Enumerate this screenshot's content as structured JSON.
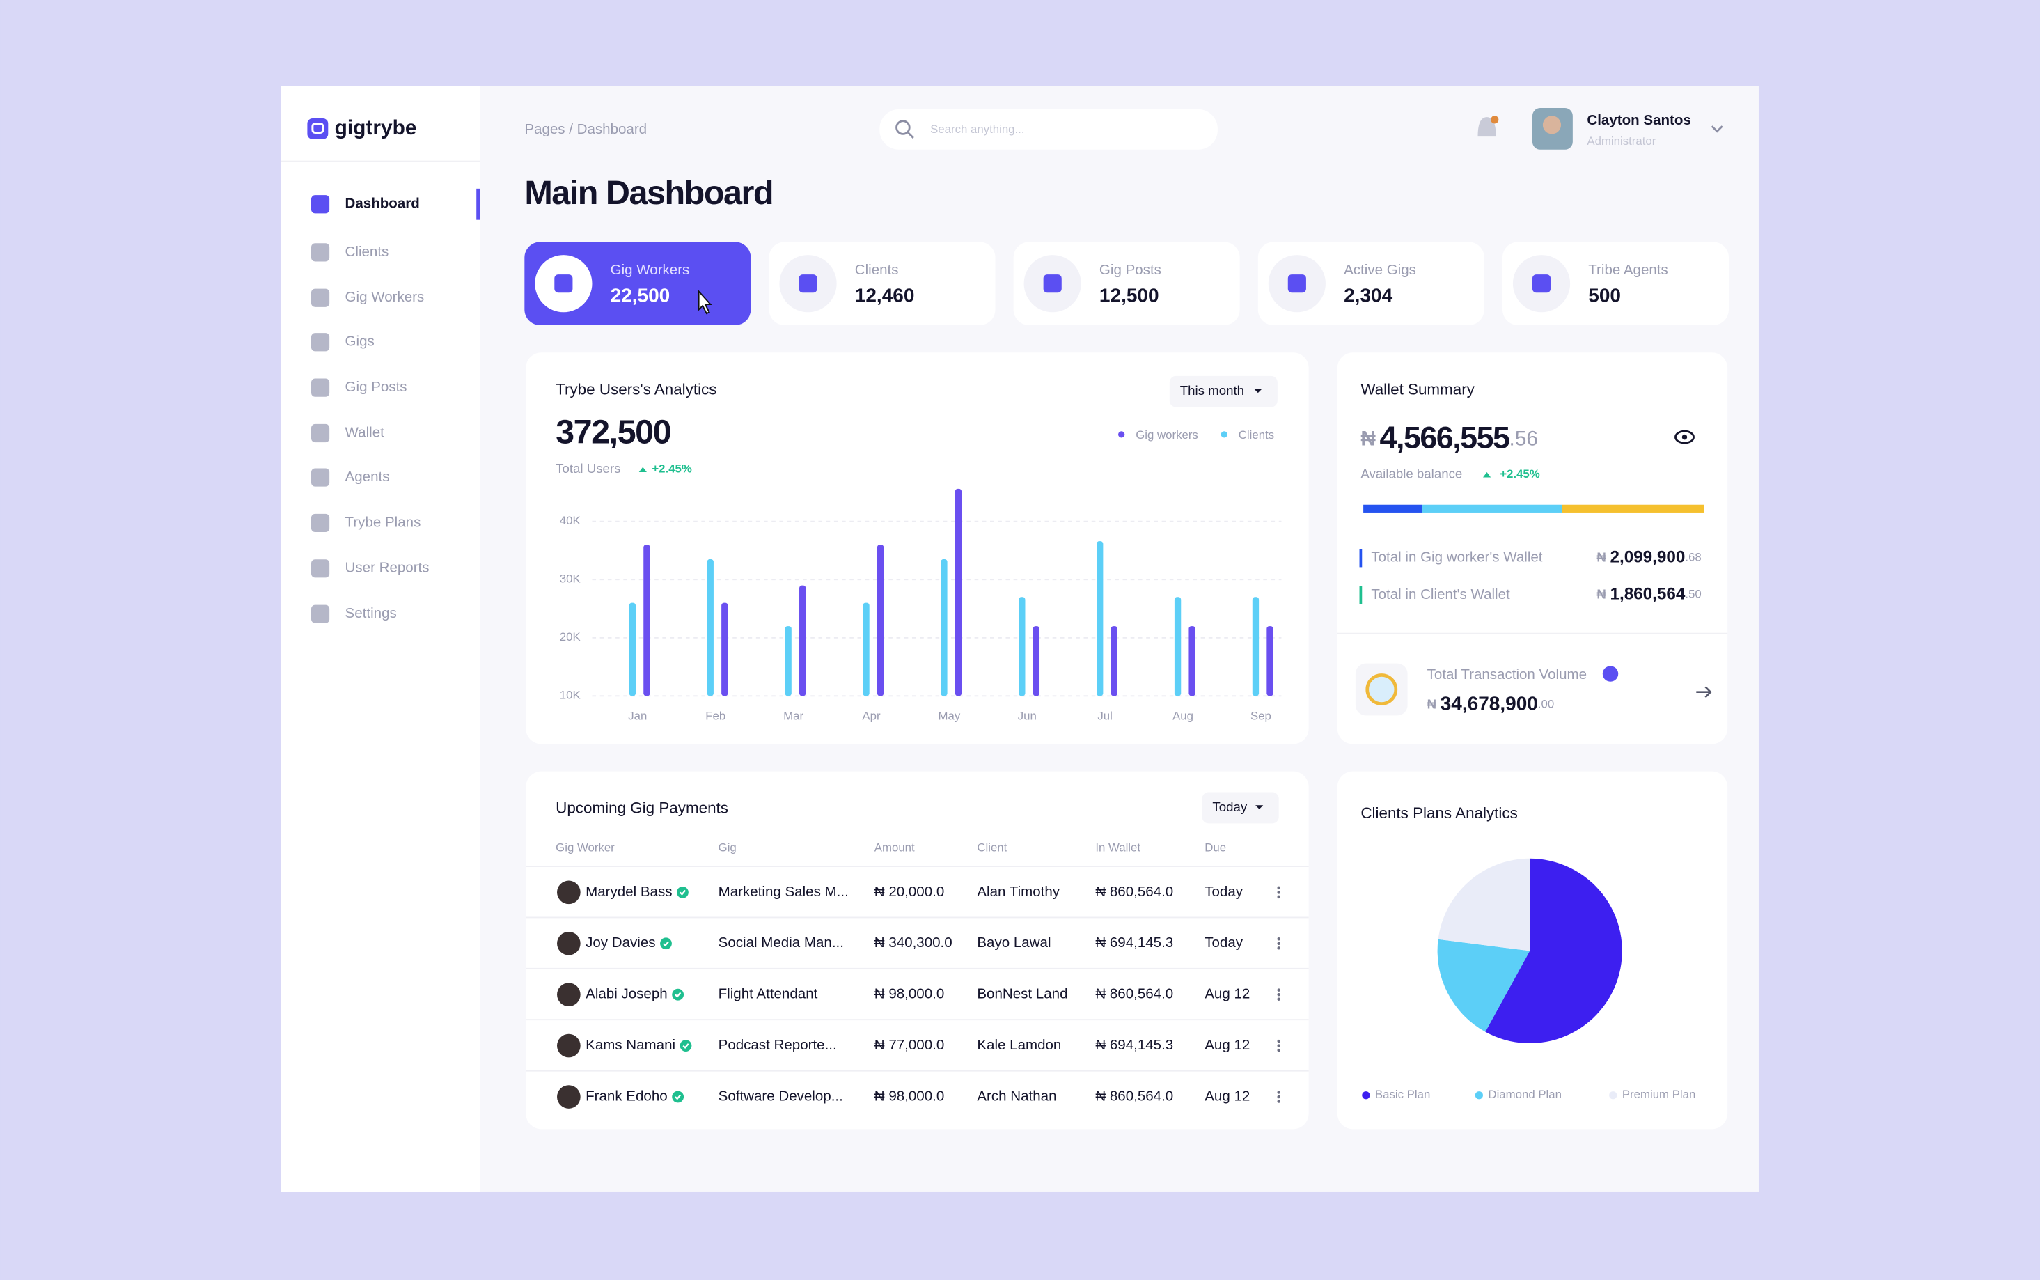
{
  "sidebar": {
    "logo": "gigtrybe",
    "nav": [
      "Dashboard",
      "Clients",
      "Gig Workers",
      "Gigs",
      "Gig Posts",
      "Wallet",
      "Agents",
      "Trybe Plans",
      "User Reports",
      "Settings"
    ]
  },
  "header": {
    "breadcrumb": "Pages / Dashboard",
    "search_placeholder": "Search anything...",
    "user": {
      "name": "Clayton Santos",
      "role": "Administrator"
    }
  },
  "page_title": "Main Dashboard",
  "stats": [
    {
      "label": "Gig Workers",
      "value": "22,500"
    },
    {
      "label": "Clients",
      "value": "12,460"
    },
    {
      "label": "Gig Posts",
      "value": "12,500"
    },
    {
      "label": "Active Gigs",
      "value": "2,304"
    },
    {
      "label": "Tribe Agents",
      "value": "500"
    }
  ],
  "analytics": {
    "title": "Trybe Users's Analytics",
    "filter": "This month",
    "total": "372,500",
    "total_label": "Total Users",
    "change": "+2.45%",
    "chart": {
      "type": "bar",
      "categories": [
        "Jan",
        "Feb",
        "Mar",
        "Apr",
        "May",
        "Jun",
        "Jul",
        "Aug",
        "Sep"
      ],
      "series": [
        {
          "name": "Clients",
          "color": "#5ccff7",
          "values": [
            26000,
            33500,
            22000,
            26000,
            33500,
            27000,
            36600,
            27000,
            27000
          ]
        },
        {
          "name": "Gig workers",
          "color": "#6a4ff0",
          "values": [
            36000,
            26000,
            29000,
            36000,
            45600,
            22000,
            22000,
            22000,
            22000
          ]
        }
      ],
      "ylim": [
        10000,
        46000
      ],
      "yticks": [
        {
          "value": 10000,
          "label": "10K"
        },
        {
          "value": 20000,
          "label": "20K"
        },
        {
          "value": 30000,
          "label": "30K"
        },
        {
          "value": 40000,
          "label": "40K"
        }
      ],
      "grid": true
    }
  },
  "wallet": {
    "title": "Wallet Summary",
    "balance": {
      "currency": "₦",
      "whole": "4,566,555",
      "fraction": ".56"
    },
    "balance_label": "Available balance",
    "change": "+2.45%",
    "rows": [
      {
        "label": "Total in Gig worker's Wallet",
        "currency": "₦",
        "whole": "2,099,900",
        "fraction": ".68"
      },
      {
        "label": "Total in Client's Wallet",
        "currency": "₦",
        "whole": "1,860,564",
        "fraction": ".50"
      }
    ],
    "volume": {
      "label": "Total Transaction Volume",
      "currency": "₦",
      "whole": "34,678,900",
      "fraction": ".00"
    }
  },
  "payments": {
    "title": "Upcoming Gig Payments",
    "filter": "Today",
    "columns": [
      "Gig Worker",
      "Gig",
      "Amount",
      "Client",
      "In Wallet",
      "Due"
    ],
    "rows": [
      [
        "Marydel Bass",
        "Marketing Sales M...",
        "₦ 20,000.0",
        "Alan Timothy",
        "₦ 860,564.0",
        "Today"
      ],
      [
        "Joy Davies",
        "Social Media Man...",
        "₦ 340,300.0",
        "Bayo Lawal",
        "₦ 694,145.3",
        "Today"
      ],
      [
        "Alabi Joseph",
        "Flight Attendant",
        "₦ 98,000.0",
        "BonNest Land",
        "₦ 860,564.0",
        "Aug 12"
      ],
      [
        "Kams Namani",
        "Podcast Reporte...",
        "₦ 77,000.0",
        "Kale Lamdon",
        "₦ 694,145.3",
        "Aug 12"
      ],
      [
        "Frank Edoho",
        "Software Develop...",
        "₦ 98,000.0",
        "Arch Nathan",
        "₦ 860,564.0",
        "Aug 12"
      ]
    ]
  },
  "plans": {
    "title": "Clients Plans Analytics",
    "chart": {
      "type": "pie",
      "categories": [
        "Basic Plan",
        "Diamond Plan",
        "Premium Plan"
      ],
      "values": [
        58,
        19,
        23
      ],
      "colors": [
        "#3d1ff0",
        "#5ccff7",
        "#e9ecf8"
      ]
    }
  }
}
